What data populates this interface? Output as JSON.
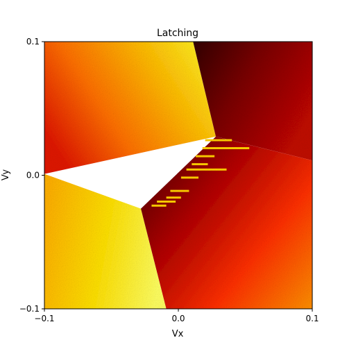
{
  "chart_data": {
    "type": "heatmap",
    "title": "Latching",
    "xlabel": "Vx",
    "ylabel": "Vy",
    "xlim": [
      -0.1,
      0.1
    ],
    "ylim": [
      -0.1,
      0.1
    ],
    "xticks": [
      -0.1,
      0.0,
      0.1
    ],
    "yticks": [
      -0.1,
      0.0,
      0.1
    ],
    "xtick_labels": [
      "−0.1",
      "0.0",
      "0.1"
    ],
    "ytick_labels": [
      "−0.1",
      "0.0",
      "0.1"
    ],
    "colormap": "hot",
    "grid": false,
    "legend": "none",
    "regions": [
      {
        "name": "upper-left",
        "gradient": "red at left edge to yellow near center-top",
        "vertices": [
          [
            -0.1,
            0.1
          ],
          [
            0.011,
            0.1
          ],
          [
            0.028,
            0.029
          ],
          [
            -0.1,
            0.001
          ]
        ]
      },
      {
        "name": "upper-right",
        "gradient": "dark red at top-left to red at right",
        "vertices": [
          [
            0.011,
            0.1
          ],
          [
            0.1,
            0.1
          ],
          [
            0.1,
            0.011
          ],
          [
            0.028,
            0.029
          ]
        ]
      },
      {
        "name": "lower-left",
        "gradient": "yellow-orange at left to bright yellow near center",
        "vertices": [
          [
            -0.1,
            0.001
          ],
          [
            -0.028,
            -0.025
          ],
          [
            -0.009,
            -0.1
          ],
          [
            -0.1,
            -0.1
          ]
        ]
      },
      {
        "name": "lower-right",
        "gradient": "dark red near center to orange at bottom-right",
        "vertices": [
          [
            -0.028,
            -0.025
          ],
          [
            0.028,
            0.029
          ],
          [
            0.1,
            0.011
          ],
          [
            0.1,
            -0.1
          ],
          [
            -0.009,
            -0.1
          ]
        ]
      }
    ],
    "latching_streaks": [
      {
        "x": [
          0.02,
          0.04
        ],
        "y": 0.026
      },
      {
        "x": [
          0.018,
          0.053
        ],
        "y": 0.02
      },
      {
        "x": [
          0.013,
          0.027
        ],
        "y": 0.014
      },
      {
        "x": [
          0.01,
          0.022
        ],
        "y": 0.008
      },
      {
        "x": [
          0.006,
          0.036
        ],
        "y": 0.004
      },
      {
        "x": [
          0.002,
          0.015
        ],
        "y": -0.002
      },
      {
        "x": [
          -0.006,
          0.008
        ],
        "y": -0.012
      },
      {
        "x": [
          -0.009,
          0.002
        ],
        "y": -0.017
      },
      {
        "x": [
          -0.016,
          -0.002
        ],
        "y": -0.02
      },
      {
        "x": [
          -0.02,
          -0.009
        ],
        "y": -0.023
      }
    ]
  }
}
